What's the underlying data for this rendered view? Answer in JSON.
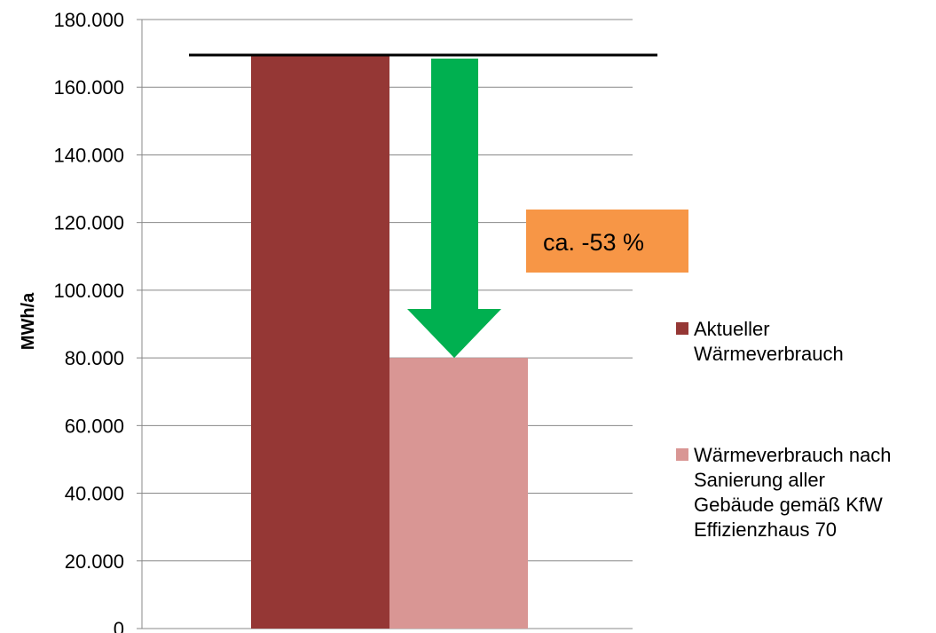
{
  "chart_data": {
    "type": "bar",
    "title": "",
    "xlabel": "",
    "ylabel": "MWh/a",
    "ylim": [
      0,
      180000
    ],
    "yticks": [
      0,
      20000,
      40000,
      60000,
      80000,
      100000,
      120000,
      140000,
      160000,
      180000
    ],
    "ytick_labels": [
      "0",
      "20.000",
      "40.000",
      "60.000",
      "80.000",
      "100.000",
      "120.000",
      "140.000",
      "160.000",
      "180.000"
    ],
    "grid": true,
    "legend_position": "right",
    "series": [
      {
        "name_lines": [
          "Aktueller",
          "Wärmeverbrauch"
        ],
        "value": 169500,
        "color": "#953735"
      },
      {
        "name_lines": [
          "Wärmeverbrauch nach",
          "Sanierung aller",
          "Gebäude gemäß KfW",
          "Effizienzhaus 70"
        ],
        "value": 80000,
        "color": "#d99694"
      }
    ],
    "reference_line": {
      "value": 169500,
      "color": "#000000"
    },
    "annotation": {
      "text": "ca. -53 %",
      "box_color": "#f79646",
      "arrow_color": "#00b050"
    }
  }
}
